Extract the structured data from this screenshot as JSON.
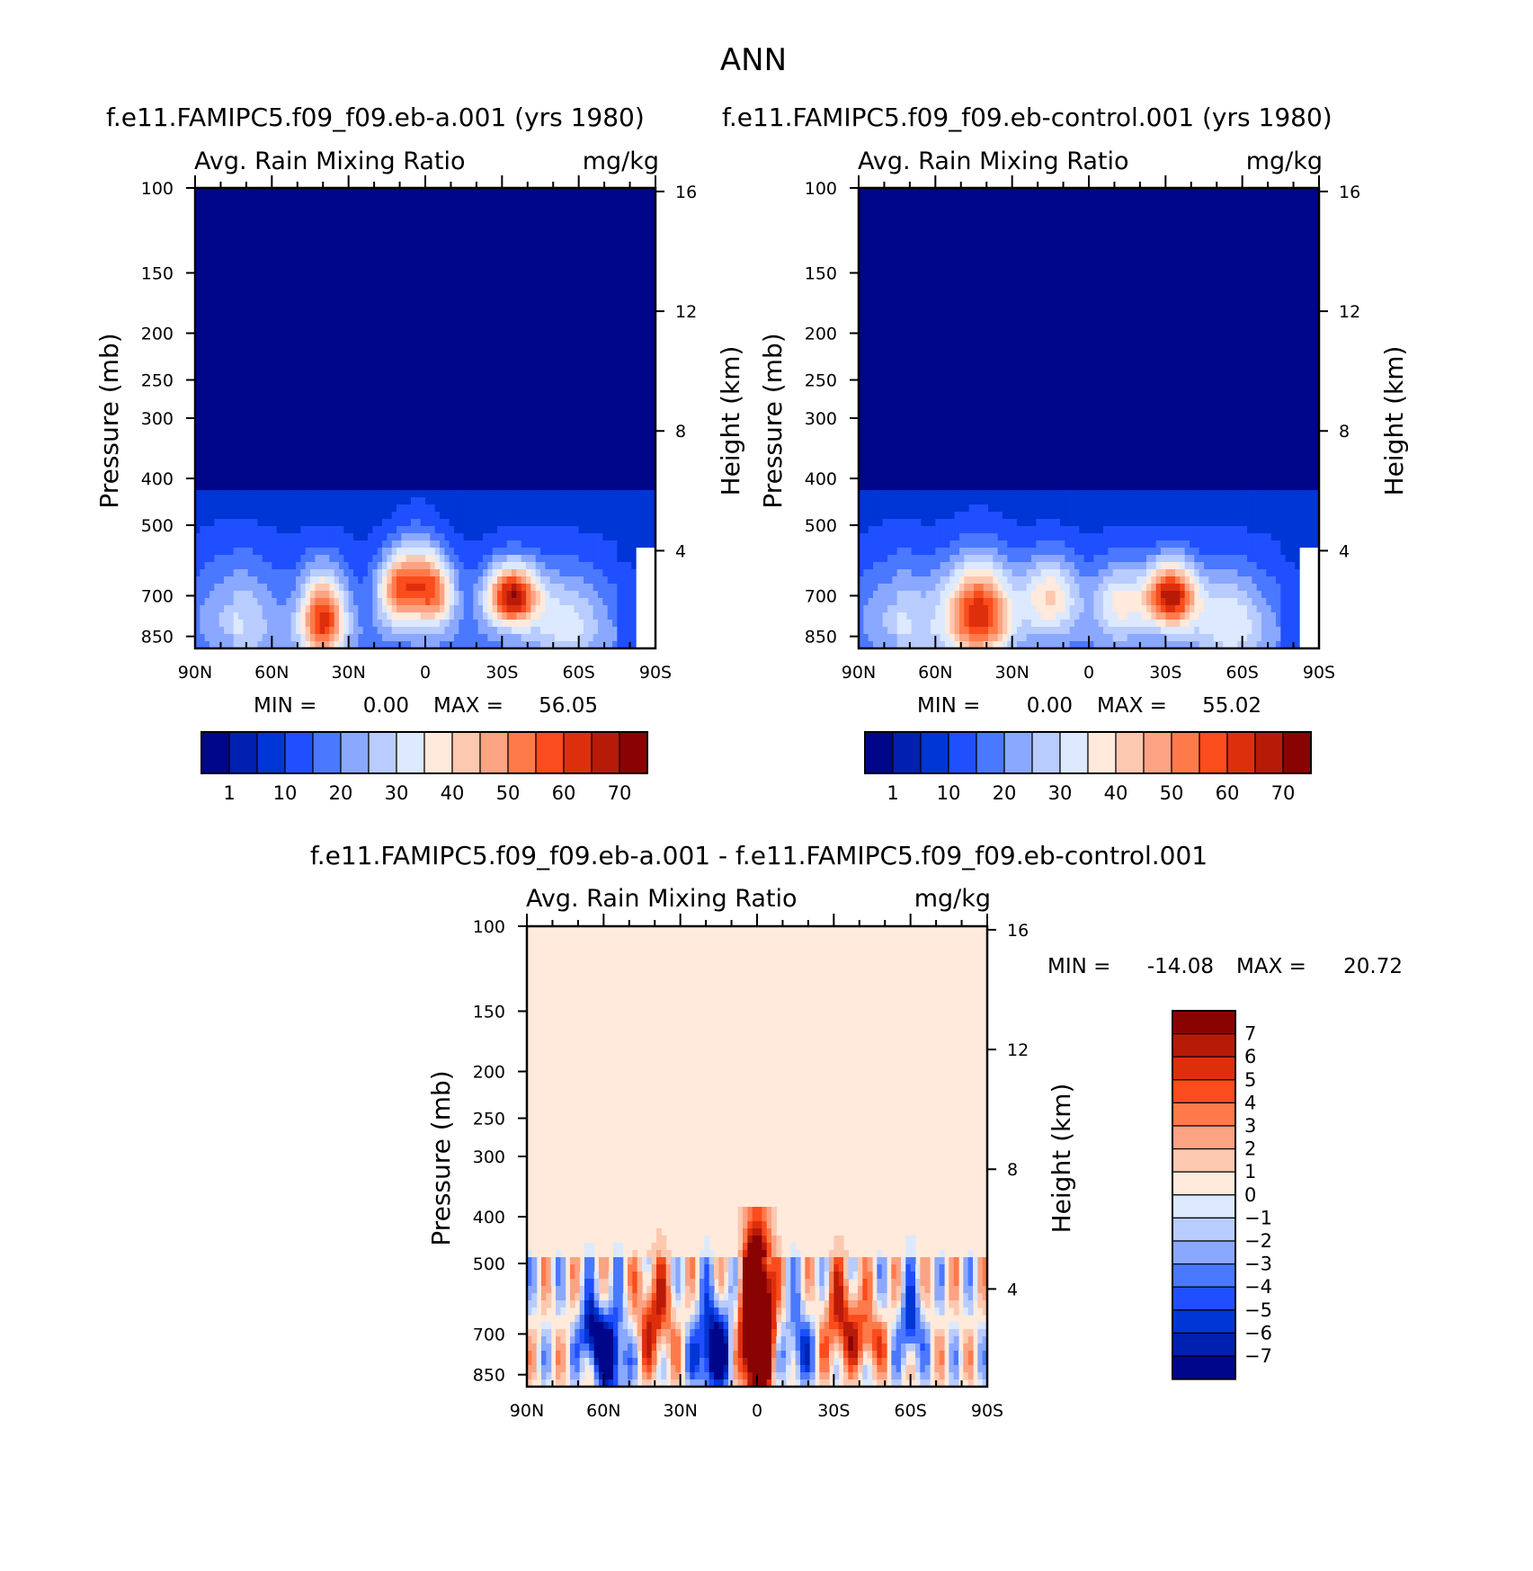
{
  "page_title": "ANN",
  "chart_data": [
    {
      "id": "model",
      "type": "heatmap",
      "title": "f.e11.FAMIPC5.f09_f09.eb-a.001 (yrs 1980)",
      "variable": "Avg. Rain Mixing Ratio",
      "units": "mg/kg",
      "xlabel": "",
      "ylabel": "Pressure (mb)",
      "y2label": "Height (km)",
      "x_ticks": [
        "90N",
        "60N",
        "30N",
        "0",
        "30S",
        "60S",
        "90S"
      ],
      "y_ticks": [
        "100",
        "150",
        "200",
        "250",
        "300",
        "400",
        "500",
        "700",
        "850"
      ],
      "y2_ticks": [
        "16",
        "12",
        "8",
        "4"
      ],
      "min_label": "MIN =",
      "min_value": "0.00",
      "max_label": "MAX =",
      "max_value": "56.05",
      "max_number": 56.05,
      "colorbar_labels": [
        "1",
        "10",
        "20",
        "30",
        "40",
        "50",
        "60",
        "70"
      ]
    },
    {
      "id": "control",
      "type": "heatmap",
      "title": "f.e11.FAMIPC5.f09_f09.eb-control.001 (yrs 1980)",
      "variable": "Avg. Rain Mixing Ratio",
      "units": "mg/kg",
      "xlabel": "",
      "ylabel": "Pressure (mb)",
      "y2label": "Height (km)",
      "x_ticks": [
        "90N",
        "60N",
        "30N",
        "0",
        "30S",
        "60S",
        "90S"
      ],
      "y_ticks": [
        "100",
        "150",
        "200",
        "250",
        "300",
        "400",
        "500",
        "700",
        "850"
      ],
      "y2_ticks": [
        "16",
        "12",
        "8",
        "4"
      ],
      "min_label": "MIN =",
      "min_value": "0.00",
      "max_label": "MAX =",
      "max_value": "55.02",
      "max_number": 55.02,
      "colorbar_labels": [
        "1",
        "10",
        "20",
        "30",
        "40",
        "50",
        "60",
        "70"
      ]
    },
    {
      "id": "difference",
      "type": "heatmap",
      "title": "f.e11.FAMIPC5.f09_f09.eb-a.001 - f.e11.FAMIPC5.f09_f09.eb-control.001",
      "variable": "Avg. Rain Mixing Ratio",
      "units": "mg/kg",
      "xlabel": "",
      "ylabel": "Pressure (mb)",
      "y2label": "Height (km)",
      "x_ticks": [
        "90N",
        "60N",
        "30N",
        "0",
        "30S",
        "60S",
        "90S"
      ],
      "y_ticks": [
        "100",
        "150",
        "200",
        "250",
        "300",
        "400",
        "500",
        "700",
        "850"
      ],
      "y2_ticks": [
        "16",
        "12",
        "8",
        "4"
      ],
      "min_label": "MIN =",
      "min_value": "-14.08",
      "max_label": "MAX =",
      "max_value": "20.72",
      "colorbar_labels": [
        "7",
        "6",
        "5",
        "4",
        "3",
        "2",
        "1",
        "0",
        "-1",
        "-2",
        "-3",
        "-4",
        "-5",
        "-6",
        "-7"
      ]
    }
  ],
  "colors": {
    "seq": [
      "#00068a",
      "#0020b0",
      "#0035d6",
      "#1f4fff",
      "#4a78ff",
      "#8aa8ff",
      "#b9ccff",
      "#dce9ff",
      "#ffeadb",
      "#fdc8b0",
      "#fba382",
      "#ff7a4a",
      "#fa4c1c",
      "#de2f0d",
      "#b81a08",
      "#8a0303"
    ],
    "div": [
      "#8a0303",
      "#b81a08",
      "#de2f0d",
      "#fa4c1c",
      "#ff7a4a",
      "#fba382",
      "#fdc8b0",
      "#ffeadb",
      "#dce9ff",
      "#b9ccff",
      "#8aa8ff",
      "#4a78ff",
      "#1f4fff",
      "#0035d6",
      "#0020b0",
      "#00068a"
    ],
    "background_diff": "#ffeadb"
  }
}
